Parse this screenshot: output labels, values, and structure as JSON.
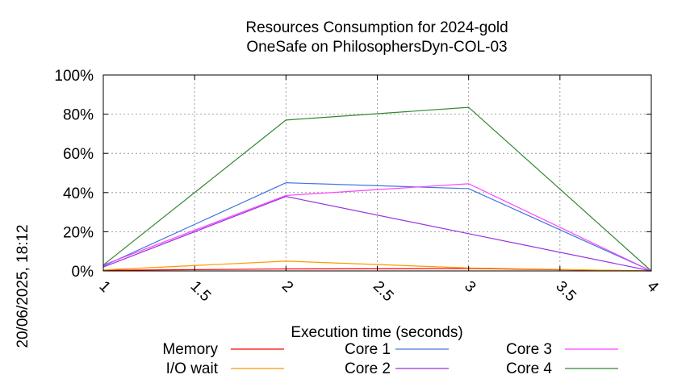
{
  "chart_data": {
    "type": "line",
    "title": [
      "Resources Consumption for 2024-gold",
      "OneSafe on PhilosophersDyn-COL-03"
    ],
    "xlabel": "Execution time (seconds)",
    "ylabel": "",
    "side_label": "20/06/2025, 18:12",
    "xlim": [
      1,
      4
    ],
    "ylim": [
      0,
      100
    ],
    "x_ticks": [
      1,
      1.5,
      2,
      2.5,
      3,
      3.5,
      4
    ],
    "x_tick_labels": [
      "1",
      "1.5",
      "2",
      "2.5",
      "3",
      "3.5",
      "4"
    ],
    "y_ticks": [
      0,
      20,
      40,
      60,
      80,
      100
    ],
    "y_tick_labels": [
      "0%",
      "20%",
      "40%",
      "60%",
      "80%",
      "100%"
    ],
    "grid": true,
    "legend_placement": "bottom",
    "series": [
      {
        "name": "Memory",
        "color": "#ff0000",
        "x": [
          1,
          2,
          3,
          4
        ],
        "y": [
          0.3,
          1.0,
          1.2,
          0
        ]
      },
      {
        "name": "I/O wait",
        "color": "#ff9900",
        "x": [
          1,
          2,
          3,
          4
        ],
        "y": [
          0.5,
          5.0,
          1.5,
          0
        ]
      },
      {
        "name": "Core 1",
        "color": "#4477dd",
        "x": [
          1,
          2,
          3,
          4
        ],
        "y": [
          2.5,
          45.0,
          42.0,
          0
        ]
      },
      {
        "name": "Core 2",
        "color": "#9933dd",
        "x": [
          1,
          2,
          3,
          4
        ],
        "y": [
          2.0,
          38.0,
          19.0,
          0
        ]
      },
      {
        "name": "Core 3",
        "color": "#ff44ff",
        "x": [
          1,
          2,
          3,
          4
        ],
        "y": [
          3.0,
          38.5,
          44.5,
          0
        ]
      },
      {
        "name": "Core 4",
        "color": "#338833",
        "x": [
          1,
          2,
          3,
          4
        ],
        "y": [
          3.0,
          77.0,
          83.5,
          0
        ]
      }
    ]
  }
}
